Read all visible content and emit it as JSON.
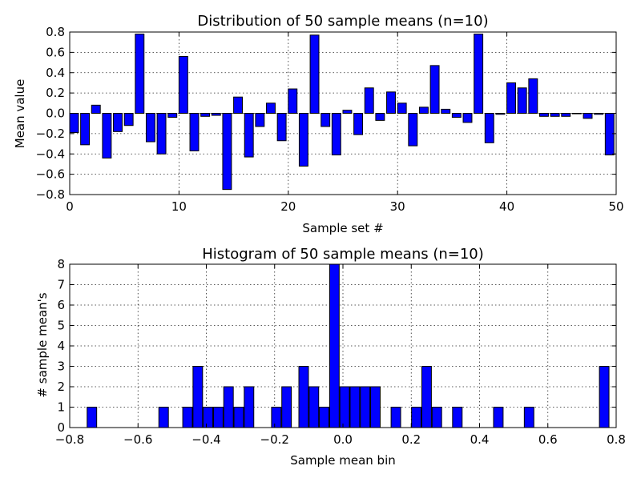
{
  "chart_data": [
    {
      "type": "bar",
      "title": "Distribution of 50 sample means (n=10)",
      "xlabel": "Sample set #",
      "ylabel": "Mean value",
      "xlim": [
        0,
        50
      ],
      "ylim": [
        -0.8,
        0.8
      ],
      "xticks": [
        0,
        10,
        20,
        30,
        40,
        50
      ],
      "yticks": [
        -0.8,
        -0.6,
        -0.4,
        -0.2,
        0.0,
        0.2,
        0.4,
        0.6,
        0.8
      ],
      "ytick_labels": [
        "−0.8",
        "−0.6",
        "−0.4",
        "−0.2",
        "0.0",
        "0.2",
        "0.4",
        "0.6",
        "0.8"
      ],
      "grid": true,
      "bar_width": 0.8,
      "color": "#0000ff",
      "x": [
        0,
        1,
        2,
        3,
        4,
        5,
        6,
        7,
        8,
        9,
        10,
        11,
        12,
        13,
        14,
        15,
        16,
        17,
        18,
        19,
        20,
        21,
        22,
        23,
        24,
        25,
        26,
        27,
        28,
        29,
        30,
        31,
        32,
        33,
        34,
        35,
        36,
        37,
        38,
        39,
        40,
        41,
        42,
        43,
        44,
        45,
        46,
        47,
        48,
        49
      ],
      "values": [
        -0.19,
        -0.31,
        0.08,
        -0.44,
        -0.18,
        -0.12,
        0.78,
        -0.28,
        -0.4,
        -0.04,
        0.56,
        -0.37,
        -0.03,
        -0.02,
        -0.75,
        0.16,
        -0.43,
        -0.13,
        0.1,
        -0.27,
        0.24,
        -0.52,
        0.77,
        -0.13,
        -0.41,
        0.03,
        -0.21,
        0.25,
        -0.07,
        0.21,
        0.1,
        -0.32,
        0.06,
        0.47,
        0.04,
        -0.04,
        -0.09,
        0.78,
        -0.29,
        -0.01,
        0.3,
        0.25,
        0.34,
        -0.03,
        -0.03,
        -0.03,
        0.0,
        -0.05,
        -0.01,
        -0.41
      ]
    },
    {
      "type": "bar",
      "title": "Histogram of 50 sample means (n=10)",
      "xlabel": "Sample mean bin",
      "ylabel": "# sample mean's",
      "xlim": [
        -0.8,
        0.8
      ],
      "ylim": [
        0,
        8
      ],
      "xticks": [
        -0.8,
        -0.6,
        -0.4,
        -0.2,
        0.0,
        0.2,
        0.4,
        0.6,
        0.8
      ],
      "xtick_labels": [
        "−0.8",
        "−0.6",
        "−0.4",
        "−0.2",
        "0.0",
        "0.2",
        "0.4",
        "0.6",
        "0.8"
      ],
      "yticks": [
        0,
        1,
        2,
        3,
        4,
        5,
        6,
        7,
        8
      ],
      "grid": true,
      "bin_width": 0.03,
      "bar_width": 0.028,
      "color": "#0000ff",
      "bin_centers": [
        -0.735,
        -0.525,
        -0.455,
        -0.425,
        -0.395,
        -0.365,
        -0.335,
        -0.305,
        -0.275,
        -0.195,
        -0.165,
        -0.115,
        -0.085,
        -0.055,
        -0.025,
        0.005,
        0.035,
        0.065,
        0.095,
        0.155,
        0.215,
        0.245,
        0.275,
        0.335,
        0.455,
        0.545,
        0.765
      ],
      "counts": [
        1,
        1,
        1,
        3,
        1,
        1,
        2,
        1,
        2,
        1,
        2,
        3,
        2,
        1,
        8,
        2,
        2,
        2,
        2,
        1,
        1,
        3,
        1,
        1,
        1,
        1,
        3
      ]
    }
  ]
}
